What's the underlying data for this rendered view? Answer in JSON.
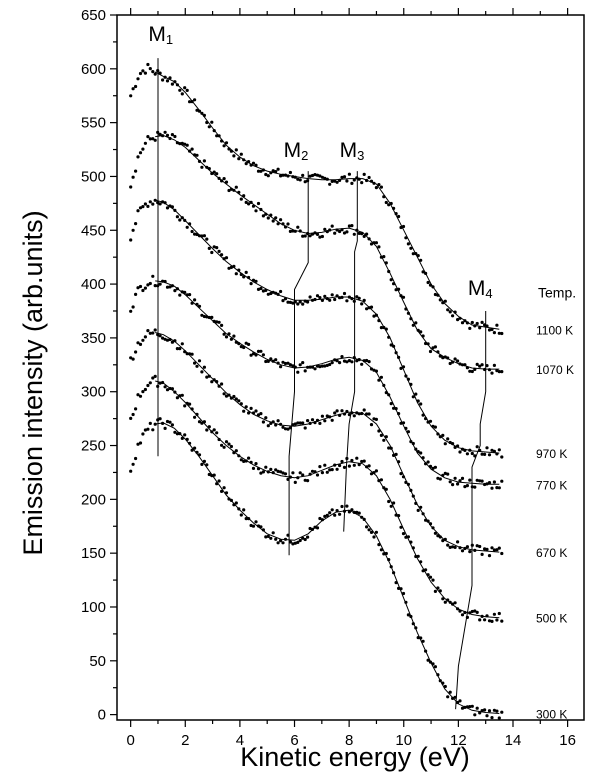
{
  "chart_data": {
    "type": "scatter",
    "xlabel": "Kinetic energy (eV)",
    "ylabel": "Emission intensity (arb.units)",
    "xlim": [
      -0.5,
      16.6
    ],
    "ylim": [
      -5,
      650
    ],
    "x_ticks": [
      0,
      2,
      4,
      6,
      8,
      10,
      12,
      14,
      16
    ],
    "y_ticks": [
      0,
      50,
      100,
      150,
      200,
      250,
      300,
      350,
      400,
      450,
      500,
      550,
      600,
      650
    ],
    "grid": false,
    "legend_header": "Temp.",
    "fit_line": true,
    "series": [
      {
        "name": "1100 K",
        "label_y": 358,
        "points": [
          [
            0,
            575
          ],
          [
            0.3,
            595
          ],
          [
            0.6,
            601
          ],
          [
            0.9,
            597
          ],
          [
            1.2,
            593
          ],
          [
            1.6,
            588
          ],
          [
            2.0,
            578
          ],
          [
            2.5,
            562
          ],
          [
            3.0,
            545
          ],
          [
            3.5,
            529
          ],
          [
            4.0,
            518
          ],
          [
            4.5,
            510
          ],
          [
            5.0,
            505
          ],
          [
            5.5,
            502
          ],
          [
            6.0,
            500
          ],
          [
            6.5,
            498
          ],
          [
            7.0,
            497
          ],
          [
            7.5,
            497
          ],
          [
            8.0,
            498
          ],
          [
            8.5,
            498
          ],
          [
            9.0,
            493
          ],
          [
            9.5,
            475
          ],
          [
            10.0,
            450
          ],
          [
            10.5,
            425
          ],
          [
            11.0,
            400
          ],
          [
            11.5,
            382
          ],
          [
            12.0,
            370
          ],
          [
            12.5,
            362
          ],
          [
            13.0,
            360
          ],
          [
            13.5,
            358
          ]
        ]
      },
      {
        "name": "1070 K",
        "label_y": 321,
        "points": [
          [
            0,
            493
          ],
          [
            0.3,
            520
          ],
          [
            0.6,
            533
          ],
          [
            0.9,
            537
          ],
          [
            1.2,
            538
          ],
          [
            1.6,
            534
          ],
          [
            2.0,
            527
          ],
          [
            2.5,
            515
          ],
          [
            3.0,
            503
          ],
          [
            3.5,
            493
          ],
          [
            4.0,
            483
          ],
          [
            4.5,
            474
          ],
          [
            5.0,
            465
          ],
          [
            5.5,
            456
          ],
          [
            6.0,
            450
          ],
          [
            6.5,
            447
          ],
          [
            7.0,
            448
          ],
          [
            7.5,
            451
          ],
          [
            8.0,
            452
          ],
          [
            8.5,
            448
          ],
          [
            9.0,
            435
          ],
          [
            9.5,
            410
          ],
          [
            10.0,
            383
          ],
          [
            10.5,
            357
          ],
          [
            11.0,
            340
          ],
          [
            11.5,
            332
          ],
          [
            12.0,
            326
          ],
          [
            12.5,
            322
          ],
          [
            13.0,
            321
          ],
          [
            13.5,
            321
          ]
        ]
      },
      {
        "name": "970 K",
        "label_y": 243,
        "points": [
          [
            0,
            445
          ],
          [
            0.3,
            466
          ],
          [
            0.6,
            476
          ],
          [
            0.9,
            478
          ],
          [
            1.2,
            476
          ],
          [
            1.6,
            469
          ],
          [
            2.0,
            459
          ],
          [
            2.5,
            446
          ],
          [
            3.0,
            433
          ],
          [
            3.5,
            421
          ],
          [
            4.0,
            411
          ],
          [
            4.5,
            402
          ],
          [
            5.0,
            395
          ],
          [
            5.5,
            389
          ],
          [
            6.0,
            385
          ],
          [
            6.5,
            385
          ],
          [
            7.0,
            386
          ],
          [
            7.5,
            388
          ],
          [
            8.0,
            388
          ],
          [
            8.5,
            384
          ],
          [
            9.0,
            372
          ],
          [
            9.5,
            350
          ],
          [
            10.0,
            320
          ],
          [
            10.5,
            290
          ],
          [
            11.0,
            268
          ],
          [
            11.5,
            255
          ],
          [
            12.0,
            248
          ],
          [
            12.5,
            245
          ],
          [
            13.0,
            244
          ],
          [
            13.5,
            243
          ]
        ]
      },
      {
        "name": "770 K",
        "label_y": 214,
        "points": [
          [
            0,
            378
          ],
          [
            0.3,
            395
          ],
          [
            0.6,
            402
          ],
          [
            0.9,
            403
          ],
          [
            1.2,
            402
          ],
          [
            1.6,
            398
          ],
          [
            2.0,
            390
          ],
          [
            2.5,
            378
          ],
          [
            3.0,
            366
          ],
          [
            3.5,
            354
          ],
          [
            4.0,
            345
          ],
          [
            4.5,
            337
          ],
          [
            5.0,
            330
          ],
          [
            5.5,
            325
          ],
          [
            6.0,
            322
          ],
          [
            6.5,
            323
          ],
          [
            7.0,
            326
          ],
          [
            7.5,
            330
          ],
          [
            8.0,
            332
          ],
          [
            8.5,
            329
          ],
          [
            9.0,
            318
          ],
          [
            9.5,
            295
          ],
          [
            10.0,
            268
          ],
          [
            10.5,
            243
          ],
          [
            11.0,
            228
          ],
          [
            11.5,
            220
          ],
          [
            12.0,
            216
          ],
          [
            12.5,
            215
          ],
          [
            13.0,
            214
          ],
          [
            13.5,
            214
          ]
        ]
      },
      {
        "name": "670 K",
        "label_y": 151,
        "points": [
          [
            0,
            330
          ],
          [
            0.3,
            346
          ],
          [
            0.6,
            353
          ],
          [
            0.9,
            355
          ],
          [
            1.2,
            353
          ],
          [
            1.6,
            347
          ],
          [
            2.0,
            338
          ],
          [
            2.5,
            325
          ],
          [
            3.0,
            312
          ],
          [
            3.5,
            299
          ],
          [
            4.0,
            288
          ],
          [
            4.5,
            279
          ],
          [
            5.0,
            273
          ],
          [
            5.5,
            269
          ],
          [
            6.0,
            268
          ],
          [
            6.5,
            270
          ],
          [
            7.0,
            274
          ],
          [
            7.5,
            278
          ],
          [
            8.0,
            281
          ],
          [
            8.5,
            280
          ],
          [
            9.0,
            270
          ],
          [
            9.5,
            250
          ],
          [
            10.0,
            222
          ],
          [
            10.5,
            195
          ],
          [
            11.0,
            175
          ],
          [
            11.5,
            162
          ],
          [
            12.0,
            156
          ],
          [
            12.5,
            153
          ],
          [
            13.0,
            152
          ],
          [
            13.5,
            151
          ]
        ]
      },
      {
        "name": "500 K",
        "label_y": 90,
        "points": [
          [
            0,
            275
          ],
          [
            0.3,
            296
          ],
          [
            0.6,
            307
          ],
          [
            0.9,
            310
          ],
          [
            1.2,
            308
          ],
          [
            1.6,
            300
          ],
          [
            2.0,
            290
          ],
          [
            2.5,
            276
          ],
          [
            3.0,
            262
          ],
          [
            3.5,
            250
          ],
          [
            4.0,
            240
          ],
          [
            4.5,
            232
          ],
          [
            5.0,
            226
          ],
          [
            5.5,
            222
          ],
          [
            6.0,
            220
          ],
          [
            6.5,
            222
          ],
          [
            7.0,
            227
          ],
          [
            7.5,
            232
          ],
          [
            8.0,
            235
          ],
          [
            8.5,
            233
          ],
          [
            9.0,
            222
          ],
          [
            9.5,
            200
          ],
          [
            10.0,
            172
          ],
          [
            10.5,
            145
          ],
          [
            11.0,
            123
          ],
          [
            11.5,
            108
          ],
          [
            12.0,
            98
          ],
          [
            12.5,
            93
          ],
          [
            13.0,
            91
          ],
          [
            13.5,
            90
          ]
        ]
      },
      {
        "name": "300 K",
        "label_y": 1,
        "points": [
          [
            0,
            228
          ],
          [
            0.3,
            252
          ],
          [
            0.6,
            264
          ],
          [
            0.9,
            270
          ],
          [
            1.2,
            271
          ],
          [
            1.6,
            266
          ],
          [
            2.0,
            256
          ],
          [
            2.5,
            240
          ],
          [
            3.0,
            222
          ],
          [
            3.5,
            204
          ],
          [
            4.0,
            190
          ],
          [
            4.5,
            178
          ],
          [
            5.0,
            168
          ],
          [
            5.5,
            163
          ],
          [
            6.0,
            162
          ],
          [
            6.5,
            168
          ],
          [
            7.0,
            180
          ],
          [
            7.5,
            188
          ],
          [
            8.0,
            190
          ],
          [
            8.5,
            183
          ],
          [
            9.0,
            166
          ],
          [
            9.5,
            140
          ],
          [
            10.0,
            108
          ],
          [
            10.5,
            76
          ],
          [
            11.0,
            48
          ],
          [
            11.5,
            24
          ],
          [
            12.0,
            10
          ],
          [
            12.5,
            4
          ],
          [
            13.0,
            2
          ],
          [
            13.5,
            1
          ]
        ]
      }
    ],
    "markers": [
      {
        "name": "M",
        "sub": "1",
        "label_x": 0.65,
        "label_y": 626,
        "line": [
          [
            1.0,
            610
          ],
          [
            1.0,
            240
          ]
        ]
      },
      {
        "name": "M",
        "sub": "2",
        "label_x": 5.6,
        "label_y": 518,
        "line": [
          [
            6.5,
            505
          ],
          [
            6.5,
            420
          ],
          [
            6.0,
            395
          ],
          [
            6.0,
            300
          ],
          [
            5.8,
            240
          ],
          [
            5.8,
            148
          ]
        ]
      },
      {
        "name": "M",
        "sub": "3",
        "label_x": 7.65,
        "label_y": 518,
        "line": [
          [
            8.3,
            505
          ],
          [
            8.3,
            440
          ],
          [
            8.2,
            430
          ],
          [
            8.2,
            300
          ],
          [
            8.0,
            270
          ],
          [
            7.9,
            230
          ],
          [
            7.8,
            170
          ]
        ]
      },
      {
        "name": "M",
        "sub": "4",
        "label_x": 12.35,
        "label_y": 390,
        "line": [
          [
            13.0,
            375
          ],
          [
            13.0,
            300
          ],
          [
            12.8,
            270
          ],
          [
            12.8,
            250
          ],
          [
            12.5,
            230
          ],
          [
            12.5,
            120
          ],
          [
            12.0,
            45
          ],
          [
            11.9,
            5
          ]
        ]
      }
    ]
  }
}
